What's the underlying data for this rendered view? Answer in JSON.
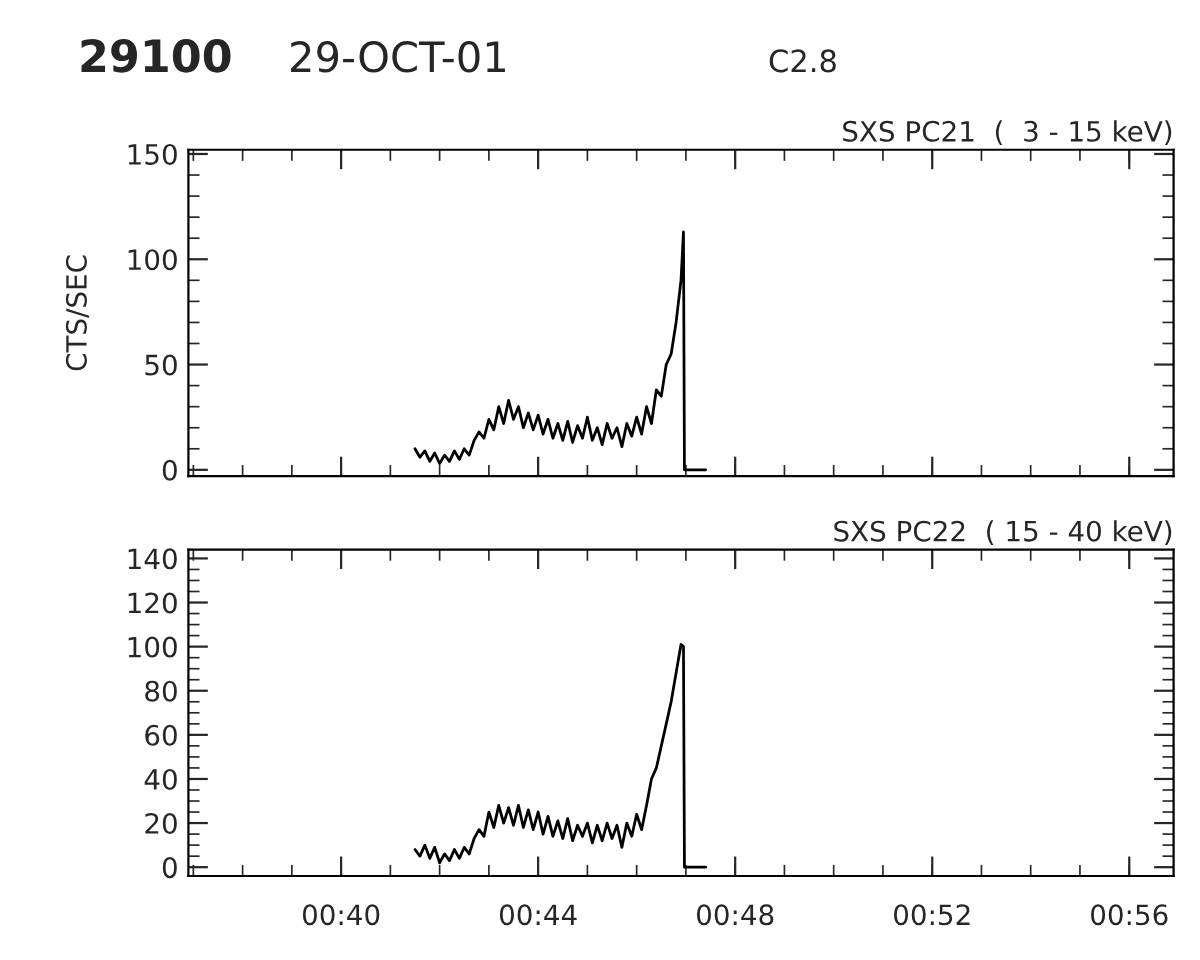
{
  "chart_data": [
    {
      "type": "line",
      "title": "SXS PC21  (  3 - 15 keV)",
      "ylabel": "CTS/SEC",
      "annotations": [
        "29100",
        "29-OCT-01",
        "C2.8"
      ],
      "x": [
        0.69167,
        0.69333,
        0.695,
        0.69667,
        0.69833,
        0.7,
        0.70167,
        0.70333,
        0.705,
        0.70667,
        0.70833,
        0.71,
        0.71167,
        0.71333,
        0.715,
        0.71667,
        0.71833,
        0.72,
        0.72167,
        0.72333,
        0.725,
        0.72667,
        0.72833,
        0.73,
        0.73167,
        0.73333,
        0.735,
        0.73667,
        0.73833,
        0.74,
        0.74167,
        0.74333,
        0.745,
        0.74667,
        0.74833,
        0.75,
        0.75167,
        0.75333,
        0.755,
        0.75667,
        0.75833,
        0.76,
        0.76167,
        0.76333,
        0.765,
        0.76667,
        0.76833,
        0.77,
        0.77167,
        0.77333,
        0.775,
        0.77667,
        0.77833,
        0.78,
        0.78167,
        0.7825,
        0.78283,
        0.785,
        0.79
      ],
      "series": [
        {
          "color": "#000000",
          "values": [
            10,
            6,
            9,
            4,
            8,
            3,
            7,
            4,
            9,
            5,
            10,
            7,
            14,
            18,
            15,
            24,
            19,
            30,
            22,
            33,
            24,
            30,
            20,
            27,
            19,
            26,
            17,
            24,
            15,
            22,
            14,
            23,
            13,
            21,
            15,
            25,
            14,
            20,
            12,
            22,
            15,
            20,
            11,
            22,
            16,
            25,
            17,
            30,
            22,
            38,
            35,
            50,
            55,
            70,
            90,
            113,
            0,
            0,
            0
          ]
        }
      ],
      "xlim": [
        0.615,
        0.94833
      ],
      "ylim": [
        -3,
        152
      ],
      "yticks": [
        0,
        50,
        100,
        150
      ],
      "xticks": [
        {
          "value": 0.66667,
          "label": null
        },
        {
          "value": 0.73333,
          "label": null
        },
        {
          "value": 0.8,
          "label": null
        },
        {
          "value": 0.86667,
          "label": null
        },
        {
          "value": 0.93333,
          "label": null
        }
      ],
      "tick_labels": "y",
      "grid": false
    },
    {
      "type": "line",
      "title": "SXS PC22  ( 15 - 40 keV)",
      "x": [
        0.69167,
        0.69333,
        0.695,
        0.69667,
        0.69833,
        0.7,
        0.70167,
        0.70333,
        0.705,
        0.70667,
        0.70833,
        0.71,
        0.71167,
        0.71333,
        0.715,
        0.71667,
        0.71833,
        0.72,
        0.72167,
        0.72333,
        0.725,
        0.72667,
        0.72833,
        0.73,
        0.73167,
        0.73333,
        0.735,
        0.73667,
        0.73833,
        0.74,
        0.74167,
        0.74333,
        0.745,
        0.74667,
        0.74833,
        0.75,
        0.75167,
        0.75333,
        0.755,
        0.75667,
        0.75833,
        0.76,
        0.76167,
        0.76333,
        0.765,
        0.76667,
        0.76833,
        0.77,
        0.77167,
        0.77333,
        0.775,
        0.77667,
        0.77833,
        0.78,
        0.78167,
        0.7825,
        0.78283,
        0.785,
        0.79
      ],
      "series": [
        {
          "color": "#000000",
          "values": [
            8,
            5,
            10,
            4,
            9,
            2,
            6,
            3,
            8,
            4,
            9,
            6,
            13,
            17,
            14,
            25,
            18,
            28,
            20,
            27,
            19,
            28,
            18,
            26,
            17,
            25,
            15,
            23,
            14,
            21,
            13,
            22,
            12,
            19,
            14,
            20,
            11,
            19,
            12,
            20,
            13,
            19,
            9,
            20,
            14,
            24,
            17,
            28,
            40,
            45,
            55,
            65,
            75,
            88,
            101,
            100,
            0,
            0,
            0
          ]
        }
      ],
      "xlim": [
        0.615,
        0.94833
      ],
      "ylim": [
        -4,
        144
      ],
      "yticks": [
        0,
        20,
        40,
        60,
        80,
        100,
        120,
        140
      ],
      "xticks": [
        {
          "value": 0.66667,
          "label": "00:40"
        },
        {
          "value": 0.73333,
          "label": "00:44"
        },
        {
          "value": 0.8,
          "label": "00:48"
        },
        {
          "value": 0.86667,
          "label": "00:52"
        },
        {
          "value": 0.93333,
          "label": "00:56"
        }
      ],
      "grid": false
    }
  ]
}
